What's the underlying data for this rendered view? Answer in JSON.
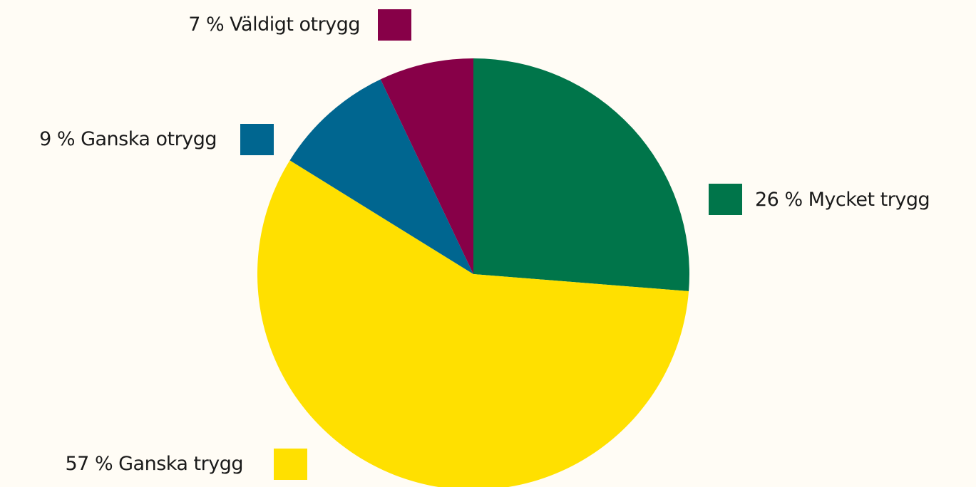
{
  "chart_data": {
    "type": "pie",
    "categories": [
      "Mycket trygg",
      "Ganska trygg",
      "Ganska otrygg",
      "Väldigt otrygg"
    ],
    "values": [
      26,
      57,
      9,
      7
    ],
    "value_labels": [
      "26 %",
      "57 %",
      "9 %",
      "7 %"
    ],
    "colors": [
      "#00754a",
      "#ffe000",
      "#006690",
      "#870048"
    ]
  }
}
